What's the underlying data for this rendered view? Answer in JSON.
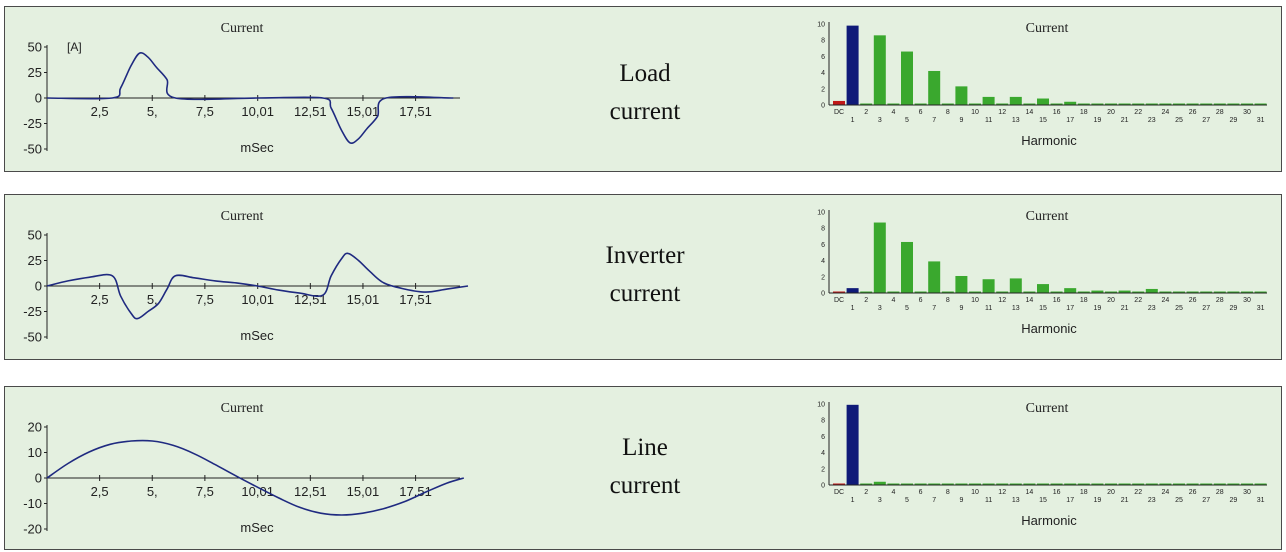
{
  "colors": {
    "panel_bg": "#e4f0e0",
    "wave": "#1f2a80",
    "bar_green": "#3aa82e",
    "bar_blue": "#0f1a78",
    "bar_red": "#c01818",
    "axis": "#222222"
  },
  "panels": [
    {
      "label_line1": "Load",
      "label_line2": "current",
      "waveform": {
        "title": "Current",
        "unit": "[A]",
        "xlabel": "mSec",
        "yticks": [
          "50",
          "25",
          "0",
          "-25",
          "-50"
        ],
        "ytick_values": [
          50,
          25,
          0,
          -25,
          -50
        ],
        "ylim": [
          -50,
          50
        ],
        "xlim": [
          0,
          20
        ],
        "xticks": [
          "2,5",
          "5,",
          "7,5",
          "10,01",
          "12,51",
          "15,01",
          "17,51"
        ],
        "xtick_values": [
          2.5,
          5,
          7.5,
          10.01,
          12.51,
          15.01,
          17.51
        ],
        "points": [
          [
            0,
            0
          ],
          [
            3.1,
            0
          ],
          [
            3.5,
            10
          ],
          [
            4,
            32
          ],
          [
            4.4,
            44
          ],
          [
            4.8,
            40
          ],
          [
            5.2,
            30
          ],
          [
            5.7,
            18
          ],
          [
            6.1,
            0
          ],
          [
            10,
            0
          ],
          [
            13.1,
            0
          ],
          [
            13.5,
            -10
          ],
          [
            14,
            -32
          ],
          [
            14.4,
            -44
          ],
          [
            14.8,
            -40
          ],
          [
            15.2,
            -30
          ],
          [
            15.7,
            -18
          ],
          [
            16.1,
            0
          ],
          [
            19.3,
            0
          ]
        ]
      },
      "harmonic": {
        "title": "Current",
        "xlabel": "Harmonic",
        "yticks": [
          "10",
          "8",
          "6",
          "4",
          "2",
          "0"
        ],
        "ymax": 10,
        "categories": [
          "DC",
          "1",
          "2",
          "3",
          "4",
          "5",
          "6",
          "7",
          "8",
          "9",
          "10",
          "11",
          "12",
          "13",
          "14",
          "15",
          "16",
          "17",
          "18",
          "19",
          "20",
          "21",
          "22",
          "23",
          "24",
          "25",
          "26",
          "27",
          "28",
          "29",
          "30",
          "31"
        ],
        "values": [
          0.5,
          9.8,
          0,
          8.6,
          0,
          6.6,
          0,
          4.2,
          0,
          2.3,
          0,
          1.0,
          0,
          1.0,
          0,
          0.8,
          0,
          0.4,
          0,
          0.1,
          0,
          0.1,
          0,
          0.1,
          0,
          0.1,
          0,
          0.1,
          0,
          0.1,
          0,
          0.1
        ],
        "colors": [
          "red",
          "blue",
          "green",
          "green",
          "green",
          "green",
          "green",
          "green",
          "green",
          "green",
          "green",
          "green",
          "green",
          "green",
          "green",
          "green",
          "green",
          "green",
          "green",
          "green",
          "green",
          "green",
          "green",
          "green",
          "green",
          "green",
          "green",
          "green",
          "green",
          "green",
          "green",
          "green"
        ]
      }
    },
    {
      "label_line1": "Inverter",
      "label_line2": "current",
      "waveform": {
        "title": "Current",
        "unit": "",
        "xlabel": "mSec",
        "yticks": [
          "50",
          "25",
          "0",
          "-25",
          "-50"
        ],
        "ytick_values": [
          50,
          25,
          0,
          -25,
          -50
        ],
        "ylim": [
          -50,
          50
        ],
        "xlim": [
          0,
          20
        ],
        "xticks": [
          "2,5",
          "5,",
          "7,5",
          "10,01",
          "12,51",
          "15,01",
          "17,51"
        ],
        "xtick_values": [
          2.5,
          5,
          7.5,
          10.01,
          12.51,
          15.01,
          17.51
        ],
        "points": [
          [
            0,
            0
          ],
          [
            1,
            5
          ],
          [
            2,
            8.5
          ],
          [
            3.1,
            10
          ],
          [
            3.5,
            -10
          ],
          [
            4,
            -27
          ],
          [
            4.3,
            -32
          ],
          [
            4.8,
            -25
          ],
          [
            5.3,
            -17
          ],
          [
            5.7,
            -3
          ],
          [
            6.1,
            10
          ],
          [
            7,
            8
          ],
          [
            8,
            5
          ],
          [
            9,
            3
          ],
          [
            10,
            0
          ],
          [
            11,
            -4
          ],
          [
            12,
            -7
          ],
          [
            13.1,
            -9
          ],
          [
            13.5,
            10
          ],
          [
            14,
            27
          ],
          [
            14.3,
            32
          ],
          [
            14.8,
            25
          ],
          [
            15.3,
            15
          ],
          [
            16,
            3
          ],
          [
            17,
            -3
          ],
          [
            18,
            -6
          ],
          [
            19,
            -3
          ],
          [
            20,
            0
          ]
        ]
      },
      "harmonic": {
        "title": "Current",
        "xlabel": "Harmonic",
        "yticks": [
          "10",
          "8",
          "6",
          "4",
          "2",
          "0"
        ],
        "ymax": 10,
        "categories": [
          "DC",
          "1",
          "2",
          "3",
          "4",
          "5",
          "6",
          "7",
          "8",
          "9",
          "10",
          "11",
          "12",
          "13",
          "14",
          "15",
          "16",
          "17",
          "18",
          "19",
          "20",
          "21",
          "22",
          "23",
          "24",
          "25",
          "26",
          "27",
          "28",
          "29",
          "30",
          "31"
        ],
        "values": [
          0.1,
          0.6,
          0,
          8.7,
          0,
          6.3,
          0,
          3.9,
          0,
          2.1,
          0,
          1.7,
          0,
          1.8,
          0,
          1.1,
          0,
          0.6,
          0,
          0.3,
          0,
          0.3,
          0,
          0.5,
          0,
          0.1,
          0,
          0.1,
          0,
          0.1,
          0,
          0.1
        ],
        "colors": [
          "red",
          "blue",
          "green",
          "green",
          "green",
          "green",
          "green",
          "green",
          "green",
          "green",
          "green",
          "green",
          "green",
          "green",
          "green",
          "green",
          "green",
          "green",
          "green",
          "green",
          "green",
          "green",
          "green",
          "green",
          "green",
          "green",
          "green",
          "green",
          "green",
          "green",
          "green",
          "green"
        ]
      }
    },
    {
      "label_line1": "Line",
      "label_line2": "current",
      "waveform": {
        "title": "Current",
        "unit": "",
        "xlabel": "mSec",
        "yticks": [
          "20",
          "10",
          "0",
          "-10",
          "-20"
        ],
        "ytick_values": [
          20,
          10,
          0,
          -10,
          -20
        ],
        "ylim": [
          -20,
          20
        ],
        "xlim": [
          0,
          20
        ],
        "xticks": [
          "2,5",
          "5,",
          "7,5",
          "10,01",
          "12,51",
          "15,01",
          "17,51"
        ],
        "xtick_values": [
          2.5,
          5,
          7.5,
          10.01,
          12.51,
          15.01,
          17.51
        ],
        "points": [
          [
            0,
            0
          ],
          [
            1,
            5.7
          ],
          [
            2,
            10.2
          ],
          [
            3,
            13.2
          ],
          [
            4,
            14.5
          ],
          [
            5,
            14.5
          ],
          [
            6,
            12.8
          ],
          [
            7,
            9.5
          ],
          [
            8,
            5.2
          ],
          [
            9,
            0.7
          ],
          [
            10,
            -3.6
          ],
          [
            11,
            -7.8
          ],
          [
            12,
            -11.5
          ],
          [
            13,
            -13.8
          ],
          [
            14,
            -14.5
          ],
          [
            15,
            -13.8
          ],
          [
            16,
            -12
          ],
          [
            17,
            -9.2
          ],
          [
            18,
            -5.5
          ],
          [
            19,
            -2
          ],
          [
            19.8,
            0
          ]
        ]
      },
      "harmonic": {
        "title": "Current",
        "xlabel": "Harmonic",
        "yticks": [
          "10",
          "8",
          "6",
          "4",
          "2",
          "0"
        ],
        "ymax": 10,
        "categories": [
          "DC",
          "1",
          "2",
          "3",
          "4",
          "5",
          "6",
          "7",
          "8",
          "9",
          "10",
          "11",
          "12",
          "13",
          "14",
          "15",
          "16",
          "17",
          "18",
          "19",
          "20",
          "21",
          "22",
          "23",
          "24",
          "25",
          "26",
          "27",
          "28",
          "29",
          "30",
          "31"
        ],
        "values": [
          0.1,
          9.9,
          0,
          0.4,
          0,
          0.1,
          0,
          0.1,
          0,
          0.1,
          0,
          0.1,
          0,
          0.1,
          0,
          0.1,
          0,
          0.1,
          0,
          0.1,
          0,
          0.1,
          0,
          0.1,
          0,
          0.1,
          0,
          0.1,
          0,
          0.1,
          0,
          0.1
        ],
        "colors": [
          "red",
          "blue",
          "green",
          "green",
          "green",
          "green",
          "green",
          "green",
          "green",
          "green",
          "green",
          "green",
          "green",
          "green",
          "green",
          "green",
          "green",
          "green",
          "green",
          "green",
          "green",
          "green",
          "green",
          "green",
          "green",
          "green",
          "green",
          "green",
          "green",
          "green",
          "green",
          "green"
        ]
      }
    }
  ],
  "chart_data": [
    {
      "type": "line",
      "title": "Current",
      "ylabel": "[A]",
      "xlabel": "mSec",
      "ylim": [
        -50,
        50
      ],
      "series": [
        {
          "x": [
            0,
            3.1,
            4.4,
            6.1,
            13.1,
            14.4,
            16.1,
            19.3
          ],
          "values": [
            0,
            0,
            44,
            0,
            0,
            -44,
            0,
            0
          ]
        }
      ]
    },
    {
      "type": "bar",
      "title": "Current",
      "xlabel": "Harmonic",
      "ylim": [
        0,
        10
      ],
      "categories": [
        "DC",
        "1",
        "3",
        "5",
        "7",
        "9",
        "11",
        "13",
        "15",
        "17"
      ],
      "values": [
        0.5,
        9.8,
        8.6,
        6.6,
        4.2,
        2.3,
        1.0,
        1.0,
        0.8,
        0.4
      ]
    },
    {
      "type": "line",
      "title": "Current",
      "xlabel": "mSec",
      "ylim": [
        -50,
        50
      ],
      "series": [
        {
          "x": [
            0,
            3.1,
            4.3,
            6.1,
            10,
            13.1,
            14.3,
            16,
            20
          ],
          "values": [
            0,
            10,
            -32,
            10,
            0,
            -9,
            32,
            3,
            0
          ]
        }
      ]
    },
    {
      "type": "bar",
      "title": "Current",
      "xlabel": "Harmonic",
      "ylim": [
        0,
        10
      ],
      "categories": [
        "DC",
        "1",
        "3",
        "5",
        "7",
        "9",
        "11",
        "13",
        "15",
        "17",
        "23"
      ],
      "values": [
        0.1,
        0.6,
        8.7,
        6.3,
        3.9,
        2.1,
        1.7,
        1.8,
        1.1,
        0.6,
        0.5
      ]
    },
    {
      "type": "line",
      "title": "Current",
      "xlabel": "mSec",
      "ylim": [
        -20,
        20
      ],
      "series": [
        {
          "x": [
            0,
            2.5,
            5,
            7.5,
            10,
            12.5,
            15,
            17.5,
            19.8
          ],
          "values": [
            0,
            11.7,
            14.5,
            8,
            -3.6,
            -12.8,
            -13.8,
            -7.5,
            0
          ]
        }
      ]
    },
    {
      "type": "bar",
      "title": "Current",
      "xlabel": "Harmonic",
      "ylim": [
        0,
        10
      ],
      "categories": [
        "DC",
        "1",
        "3"
      ],
      "values": [
        0.1,
        9.9,
        0.4
      ]
    }
  ]
}
